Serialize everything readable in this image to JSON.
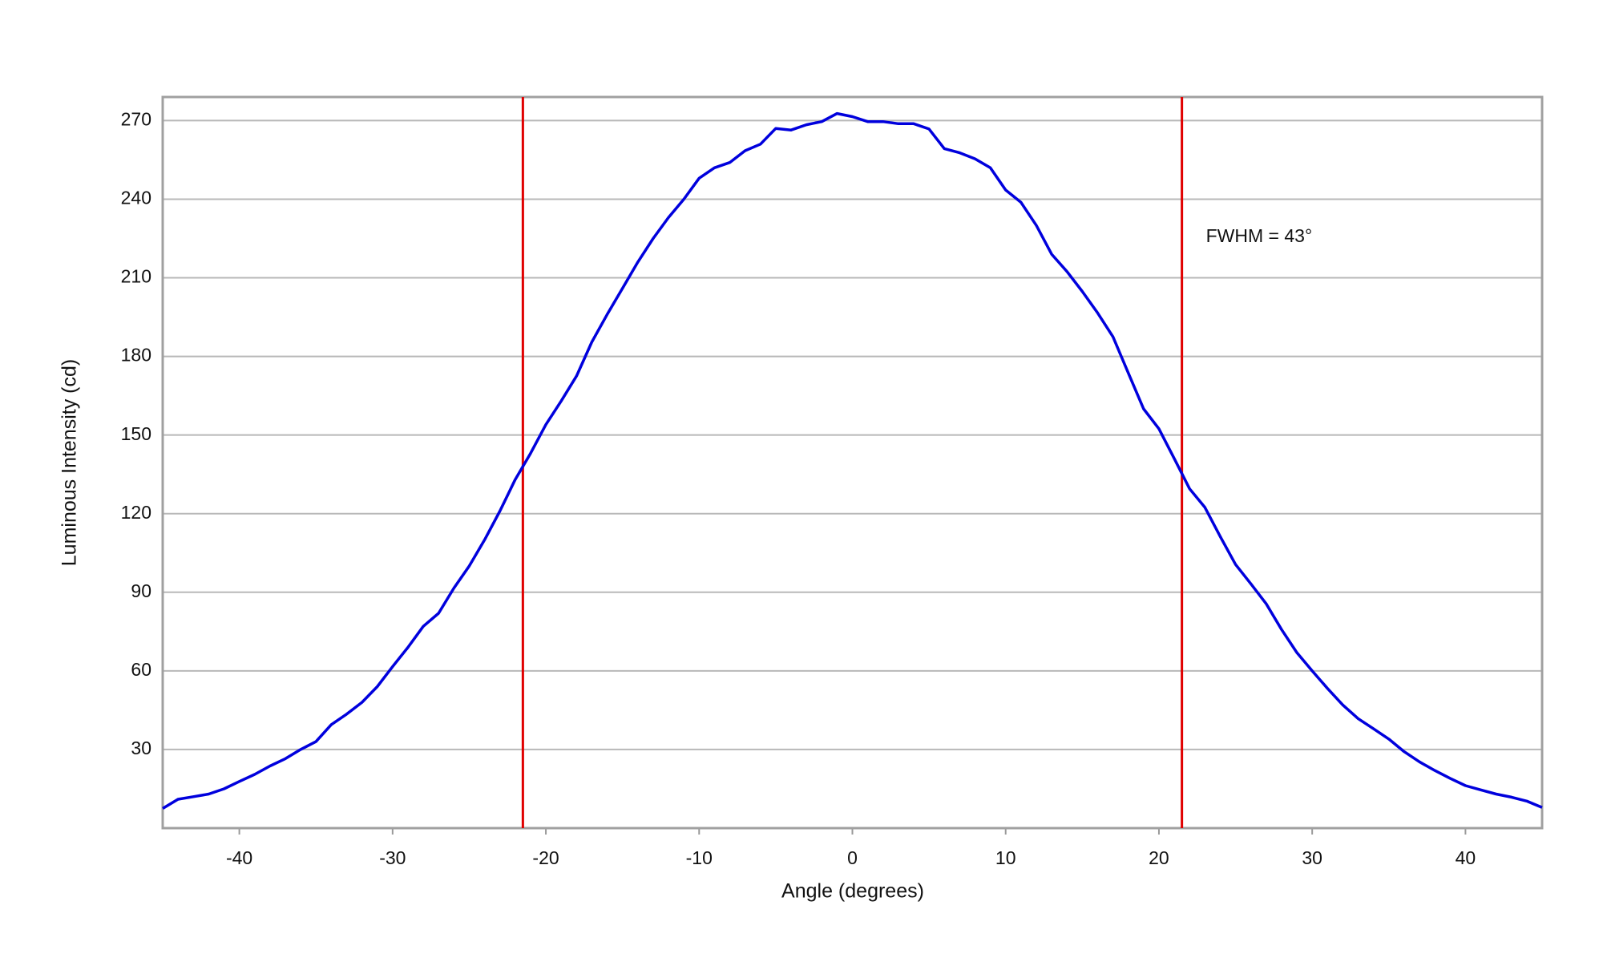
{
  "chart_data": {
    "type": "line",
    "xlabel": "Angle (degrees)",
    "ylabel": "Luminous Intensity (cd)",
    "annotation": "FWHM = 43°",
    "x": [
      -45,
      -44,
      -43,
      -42,
      -41,
      -40,
      -39,
      -38,
      -37,
      -36,
      -35,
      -34,
      -33,
      -32,
      -31,
      -30,
      -29,
      -28,
      -27,
      -26,
      -25,
      -24,
      -23,
      -22,
      -21,
      -20,
      -19,
      -18,
      -17,
      -16,
      -15,
      -14,
      -13,
      -12,
      -11,
      -10,
      -9,
      -8,
      -7,
      -6,
      -5,
      -4,
      -3,
      -2,
      -1,
      0,
      1,
      2,
      3,
      4,
      5,
      6,
      7,
      8,
      9,
      10,
      11,
      12,
      13,
      14,
      15,
      16,
      17,
      18,
      19,
      20,
      21,
      22,
      23,
      24,
      25,
      26,
      27,
      28,
      29,
      30,
      31,
      32,
      33,
      34,
      35,
      36,
      37,
      38,
      39,
      40,
      41,
      42,
      43,
      44,
      45
    ],
    "values": [
      7.5,
      11,
      12,
      13,
      15,
      17.8,
      20.5,
      23.7,
      26.5,
      30,
      33,
      39.5,
      43.5,
      48,
      54,
      61.6,
      69,
      77,
      82,
      91.6,
      100,
      110,
      121,
      133,
      143,
      154,
      163,
      172.5,
      185.5,
      196,
      206,
      216,
      225,
      233,
      240,
      248,
      252,
      254,
      258.5,
      261,
      267,
      266.4,
      268.4,
      269.6,
      272.7,
      271.5,
      269.6,
      269.6,
      268.8,
      268.8,
      266.8,
      259.3,
      257.7,
      255.4,
      252,
      243.5,
      238.8,
      230,
      219,
      212.4,
      204.8,
      196.6,
      187.5,
      173.7,
      160,
      152.4,
      141,
      129.5,
      122.4,
      111.3,
      100.6,
      93.2,
      85.6,
      75.8,
      67,
      60,
      53.3,
      47,
      41.8,
      37.9,
      34,
      29.2,
      25.3,
      22,
      19,
      16.2,
      14.6,
      13,
      11.8,
      10.3,
      7.9
    ],
    "color": "#0000dd",
    "vlines": [
      -21.5,
      21.5
    ],
    "vline_color": "#e00000",
    "xlim": [
      -45,
      45
    ],
    "xticks": [
      -40,
      -30,
      -20,
      -10,
      0,
      10,
      20,
      30,
      40
    ],
    "ylim": [
      0,
      279
    ],
    "yticks": [
      30,
      60,
      90,
      120,
      150,
      180,
      210,
      240,
      270
    ],
    "grid": true
  }
}
